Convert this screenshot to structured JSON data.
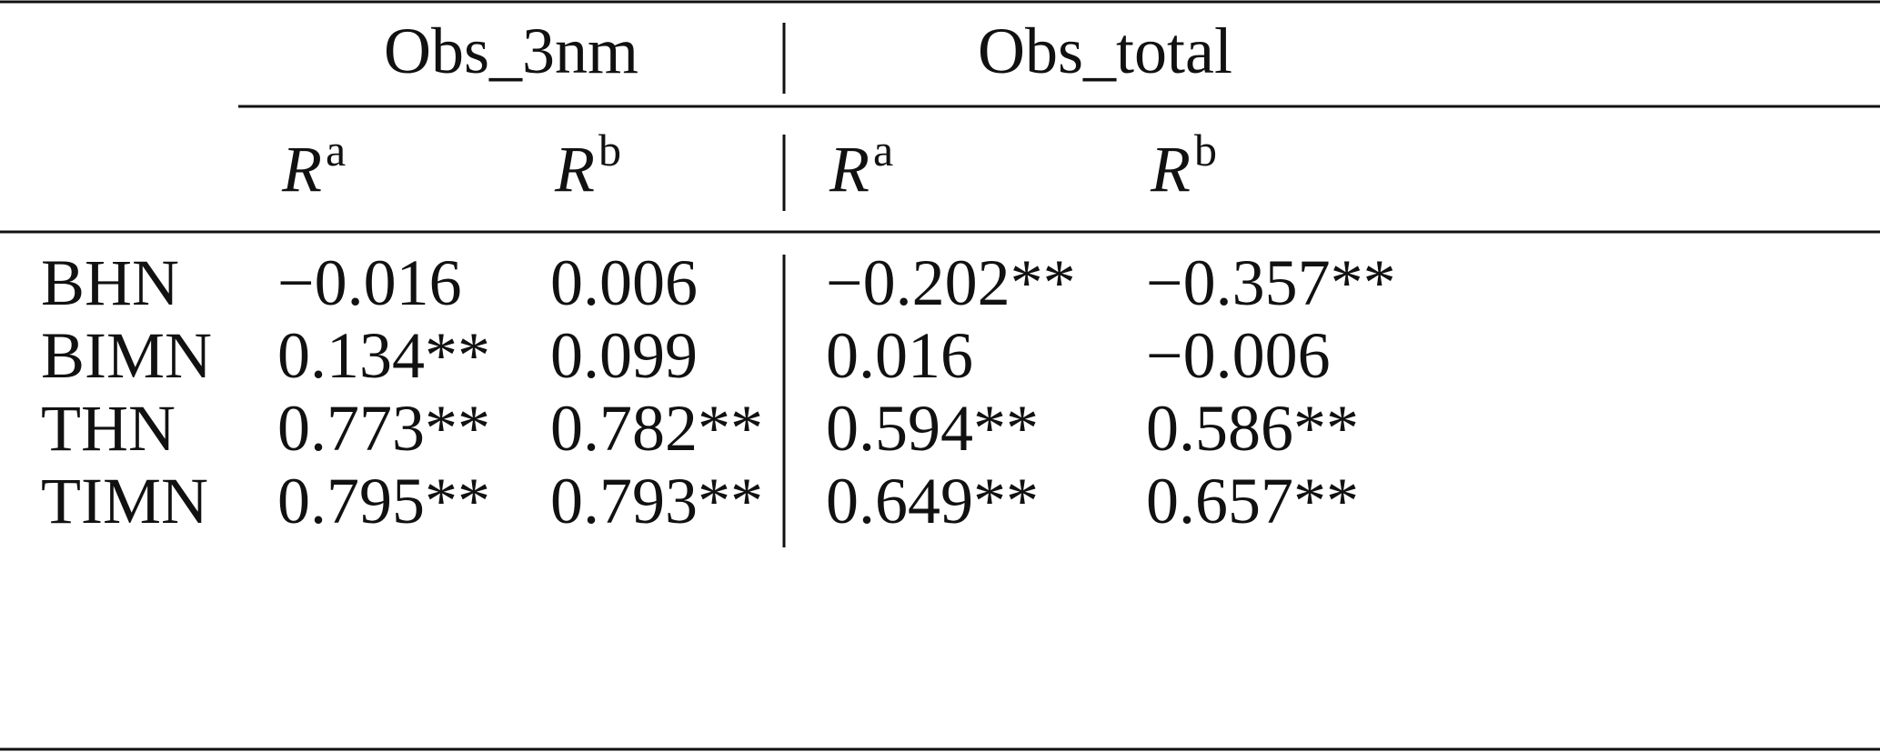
{
  "table": {
    "groups": [
      "Obs_3nm",
      "Obs_total"
    ],
    "subheaders": [
      {
        "symbol": "R",
        "sup": "a"
      },
      {
        "symbol": "R",
        "sup": "b"
      },
      {
        "symbol": "R",
        "sup": "a"
      },
      {
        "symbol": "R",
        "sup": "b"
      }
    ],
    "rows": [
      [
        "BHN",
        "−0.016",
        "0.006",
        "−0.202**",
        "−0.357**"
      ],
      [
        "BIMN",
        "0.134**",
        "0.099",
        "0.016",
        "−0.006"
      ],
      [
        "THN",
        "0.773**",
        "0.782**",
        "0.594**",
        "0.586**"
      ],
      [
        "TIMN",
        "0.795**",
        "0.793**",
        "0.649**",
        "0.657**"
      ]
    ]
  }
}
